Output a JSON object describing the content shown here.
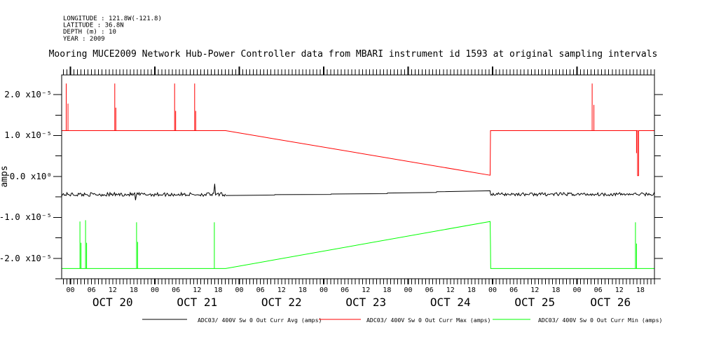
{
  "window": {
    "background": "#ffffff"
  },
  "meta_block": {
    "lines": [
      "LONGITUDE : 121.8W(-121.8)",
      "LATITUDE : 36.8N",
      "DEPTH (m) : 10",
      "YEAR : 2009"
    ]
  },
  "chart_data": {
    "type": "line",
    "title": "Mooring MUCE2009 Network Hub-Power Controller data from MBARI instrument id 1593 at original sampling intervals",
    "y_axis_unit": "amps",
    "value_scale": "x10-5 amps",
    "xlim_hours_from_oct20_0000": [
      -2.5,
      166
    ],
    "ylim_e5": [
      -2.5,
      2.48
    ],
    "grid": false,
    "legend_position": "bottom",
    "x_minor_tick_step_hours": 1,
    "x_label_step_hours": 6,
    "hour_label_cycle": [
      "00",
      "06",
      "12",
      "18"
    ],
    "days": [
      "OCT 20",
      "OCT 21",
      "OCT 22",
      "OCT 23",
      "OCT 24",
      "OCT 25",
      "OCT 26"
    ],
    "day_label_center_hours": [
      12,
      36,
      60,
      84,
      108,
      132,
      153.5
    ],
    "y_ticks": [
      {
        "value_e5": 2,
        "label": "2.0 x10⁻⁵"
      },
      {
        "value_e5": 1,
        "label": "1.0 x10⁻⁵"
      },
      {
        "value_e5": 0,
        "label": "0.0 x10⁰"
      },
      {
        "value_e5": -1,
        "label": "-1.0 x10⁻⁵"
      },
      {
        "value_e5": -2,
        "label": "-2.0 x10⁻⁵"
      }
    ],
    "y_minor_tick_step_e5": 0.5,
    "series": [
      {
        "name": "ADC03/ 400V Sw 0 Out Curr Avg (amps)",
        "color": "#000000",
        "style": "noisy-baseline",
        "noisy_segments": [
          {
            "from_h": -2.5,
            "to_h": 44.1,
            "base_e5": -0.44,
            "noise_amp_e5": 0.045,
            "spikes": [
              {
                "h": 18.4,
                "v_e5": -0.58
              },
              {
                "h": 41.1,
                "v_e5": -0.18
              }
            ]
          },
          {
            "from_h": 119.4,
            "to_h": 166,
            "base_e5": -0.435,
            "noise_amp_e5": 0.04,
            "spikes": []
          }
        ],
        "smooth_points_e5": [
          [
            44.1,
            -0.465
          ],
          [
            58,
            -0.455
          ],
          [
            58.1,
            -0.445
          ],
          [
            74,
            -0.44
          ],
          [
            74.1,
            -0.43
          ],
          [
            90,
            -0.42
          ],
          [
            90.1,
            -0.405
          ],
          [
            104,
            -0.39
          ],
          [
            104.1,
            -0.375
          ],
          [
            119.3,
            -0.35
          ],
          [
            119.4,
            -0.435
          ]
        ]
      },
      {
        "name": "ADC03/ 400V Sw 0 Out Curr Max (amps)",
        "color": "#ff0000",
        "style": "line",
        "points_e5": [
          [
            -2.5,
            1.12
          ],
          [
            -1.2,
            1.12
          ],
          [
            -1.2,
            2.27
          ],
          [
            -1.2,
            1.12
          ],
          [
            -0.7,
            1.12
          ],
          [
            -0.7,
            1.78
          ],
          [
            -0.7,
            1.12
          ],
          [
            12.6,
            1.12
          ],
          [
            12.6,
            2.27
          ],
          [
            12.6,
            1.12
          ],
          [
            12.9,
            1.12
          ],
          [
            12.9,
            1.68
          ],
          [
            12.9,
            1.12
          ],
          [
            29.6,
            1.12
          ],
          [
            29.6,
            2.27
          ],
          [
            29.6,
            1.12
          ],
          [
            29.9,
            1.12
          ],
          [
            29.9,
            1.6
          ],
          [
            29.9,
            1.12
          ],
          [
            35.3,
            1.12
          ],
          [
            35.3,
            2.27
          ],
          [
            35.3,
            1.12
          ],
          [
            35.6,
            1.12
          ],
          [
            35.6,
            1.6
          ],
          [
            35.6,
            1.12
          ],
          [
            44.1,
            1.12
          ],
          [
            119.3,
            0.03
          ],
          [
            119.4,
            1.12
          ],
          [
            148.3,
            1.12
          ],
          [
            148.3,
            2.27
          ],
          [
            148.3,
            1.12
          ],
          [
            148.8,
            1.12
          ],
          [
            148.8,
            1.75
          ],
          [
            148.8,
            1.12
          ],
          [
            160.9,
            1.12
          ],
          [
            160.9,
            0.57
          ],
          [
            160.9,
            1.12
          ],
          [
            161.2,
            1.12
          ],
          [
            161.2,
            0.02
          ],
          [
            161.5,
            0.02
          ],
          [
            161.5,
            1.12
          ],
          [
            166,
            1.12
          ]
        ]
      },
      {
        "name": "ADC03/ 400V Sw 0 Out Curr Min (amps)",
        "color": "#00ff00",
        "style": "line",
        "points_e5": [
          [
            -2.5,
            -2.25
          ],
          [
            2.7,
            -2.25
          ],
          [
            2.7,
            -1.1
          ],
          [
            2.7,
            -2.25
          ],
          [
            3.0,
            -2.25
          ],
          [
            3.0,
            -1.62
          ],
          [
            3.0,
            -2.25
          ],
          [
            4.3,
            -2.25
          ],
          [
            4.3,
            -1.07
          ],
          [
            4.3,
            -2.25
          ],
          [
            4.6,
            -2.25
          ],
          [
            4.6,
            -1.62
          ],
          [
            4.6,
            -2.25
          ],
          [
            18.8,
            -2.25
          ],
          [
            18.8,
            -1.12
          ],
          [
            18.8,
            -2.25
          ],
          [
            19.1,
            -2.25
          ],
          [
            19.1,
            -1.6
          ],
          [
            19.1,
            -2.25
          ],
          [
            40.9,
            -2.25
          ],
          [
            40.9,
            -1.12
          ],
          [
            40.9,
            -2.25
          ],
          [
            44.1,
            -2.25
          ],
          [
            119.3,
            -1.1
          ],
          [
            119.4,
            -1.7
          ],
          [
            119.45,
            -2.25
          ],
          [
            160.6,
            -2.25
          ],
          [
            160.6,
            -1.12
          ],
          [
            160.6,
            -2.25
          ],
          [
            160.9,
            -2.25
          ],
          [
            160.9,
            -1.64
          ],
          [
            160.9,
            -2.25
          ],
          [
            166,
            -2.25
          ]
        ]
      }
    ]
  }
}
